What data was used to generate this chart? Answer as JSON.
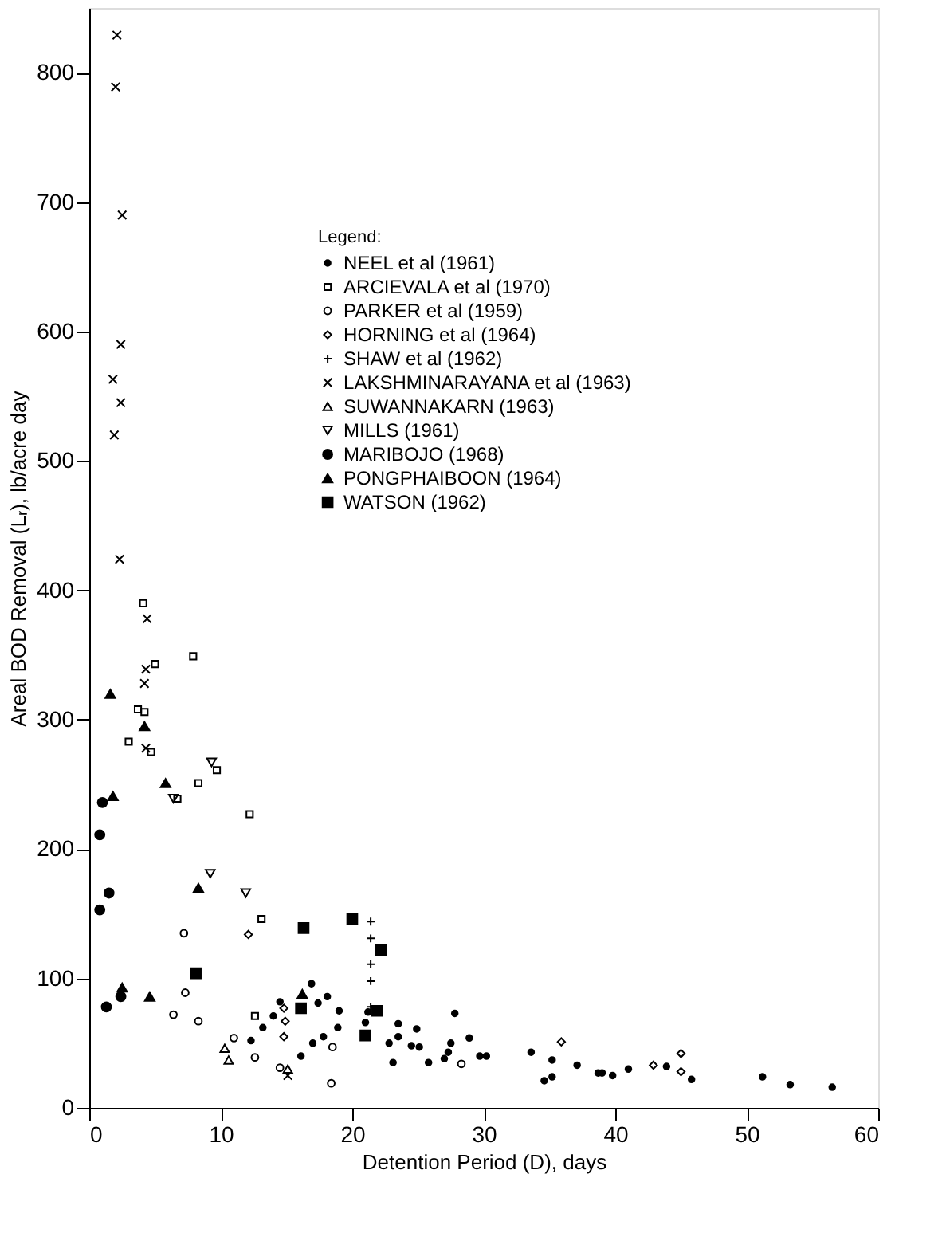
{
  "chart_data": {
    "type": "scatter",
    "xlabel": "Detention Period (D), days",
    "ylabel": "Areal BOD Removal (Lᵣ), lb/acre day",
    "legend_title": "Legend:",
    "legend": "top right",
    "grid": false,
    "xlim": [
      0,
      60
    ],
    "xticks": [
      0,
      10,
      20,
      30,
      40,
      50,
      60
    ],
    "ylim": [
      0,
      850
    ],
    "yticks": [
      0,
      100,
      200,
      300,
      400,
      500,
      600,
      700,
      800
    ],
    "series": [
      {
        "name": "NEEL et al (1961)",
        "color": "#000000",
        "marker": "circle",
        "x": [
          16.9,
          18.1,
          17.4,
          19.0,
          14.0,
          13.2,
          12.3,
          17.0,
          17.8,
          18.9,
          16.1,
          14.5,
          21.0,
          21.2,
          23.5,
          23.5,
          22.8,
          23.1,
          24.9,
          24.5,
          25.1,
          25.8,
          27.8,
          27.0,
          27.3,
          27.5,
          28.9,
          29.7,
          30.2,
          33.6,
          35.2,
          34.6,
          35.2,
          37.1,
          38.7,
          39.0,
          39.8,
          41.0,
          43.9,
          45.8,
          51.2,
          53.3,
          56.5
        ],
        "values": [
          96,
          86,
          81,
          75,
          71,
          62,
          52,
          50,
          55,
          62,
          40,
          82,
          66,
          74,
          65,
          55,
          50,
          35,
          61,
          48,
          47,
          35,
          73,
          38,
          43,
          50,
          54,
          40,
          40,
          43,
          37,
          21,
          24,
          33,
          27,
          27,
          25,
          30,
          32,
          22,
          24,
          18,
          16
        ]
      },
      {
        "name": "ARCIEVALA et al (1970)",
        "color": "#000000",
        "marker": "square",
        "x": [
          4.1,
          5.0,
          7.9,
          3.7,
          4.2,
          3.0,
          4.7,
          9.7,
          8.3,
          6.7,
          12.2,
          13.1,
          12.6
        ],
        "values": [
          390,
          343,
          349,
          308,
          306,
          283,
          275,
          261,
          251,
          239,
          227,
          146,
          71
        ]
      },
      {
        "name": "PARKER et al (1959)",
        "color": "#000000",
        "marker": "circle",
        "x": [
          7.2,
          7.3,
          6.4,
          8.3,
          11.0,
          12.6,
          14.5,
          18.5,
          18.4,
          28.3
        ],
        "values": [
          135,
          89,
          72,
          67,
          54,
          39,
          31,
          47,
          19,
          34
        ]
      },
      {
        "name": "HORNING et al (1964)",
        "color": "#000000",
        "marker": "diamond",
        "x": [
          12.1,
          14.8,
          14.9,
          14.8,
          35.9,
          42.9,
          45.0,
          45.0
        ],
        "values": [
          134,
          77,
          67,
          55,
          51,
          33,
          42,
          28
        ]
      },
      {
        "name": "SHAW et al (1962)",
        "color": "#000000",
        "marker": "cross",
        "x": [
          21.4,
          21.4,
          21.4,
          21.4,
          21.4
        ],
        "values": [
          144,
          131,
          111,
          98,
          78
        ]
      },
      {
        "name": "LAKSHMINARAYANA et al (1963)",
        "color": "#000000",
        "marker": "cross",
        "x": [
          2.1,
          2.0,
          2.5,
          2.4,
          1.8,
          2.4,
          1.9,
          2.3,
          4.4,
          4.3,
          4.2,
          4.3,
          15.1
        ],
        "values": [
          829,
          789,
          690,
          590,
          563,
          545,
          520,
          424,
          378,
          339,
          328,
          278,
          25
        ]
      },
      {
        "name": "SUWANNAKARN (1963)",
        "color": "#000000",
        "marker": "triangle",
        "x": [
          10.6,
          10.3,
          15.1
        ],
        "values": [
          37,
          46,
          30
        ]
      },
      {
        "name": "MILLS (1961)",
        "color": "#000000",
        "marker": "triangle",
        "x": [
          9.3,
          9.2,
          11.9,
          6.4
        ],
        "values": [
          267,
          181,
          166,
          239
        ]
      },
      {
        "name": "MARIBOJO (1968)",
        "color": "#000000",
        "marker": "circle",
        "x": [
          1.0,
          0.8,
          1.5,
          0.8,
          1.3,
          2.4
        ],
        "values": [
          236,
          211,
          166,
          153,
          78,
          86
        ]
      },
      {
        "name": "PONGPHAIBOON (1964)",
        "color": "#000000",
        "marker": "triangle",
        "x": [
          1.6,
          1.8,
          4.2,
          5.8,
          8.3,
          2.5,
          4.6,
          16.2
        ],
        "values": [
          320,
          241,
          295,
          251,
          170,
          93,
          86,
          88
        ]
      },
      {
        "name": "WATSON (1962)",
        "color": "#000000",
        "marker": "square",
        "x": [
          20.0,
          22.2,
          8.1,
          16.3,
          16.1,
          21.0,
          21.9
        ],
        "values": [
          146,
          122,
          104,
          139,
          77,
          56,
          75
        ]
      }
    ]
  }
}
